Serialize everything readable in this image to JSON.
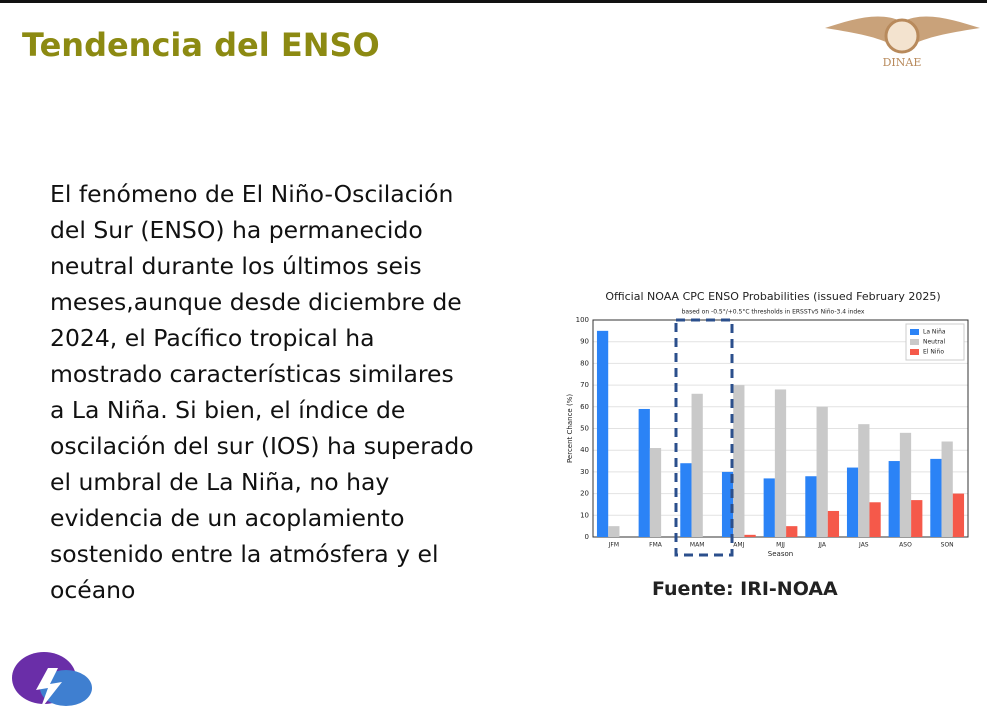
{
  "header": {
    "title": "Tendencia del ENSO",
    "logo_text": "DINAE"
  },
  "body": {
    "text": "El fenómeno de El Niño-Oscilación del Sur (ENSO) ha permanecido neutral durante los últimos seis meses,aunque desde diciembre de 2024, el Pacífico tropical ha mostrado características similares a La Niña. Si bien, el índice de oscilación del sur (IOS) ha superado el umbral de La Niña, no hay evidencia de un acoplamiento sostenido entre la atmósfera y el océano"
  },
  "caption": "Fuente: IRI-NOAA",
  "chart_data": {
    "type": "bar",
    "title": "Official NOAA CPC ENSO Probabilities (issued February 2025)",
    "subtitle": "based on -0.5°/+0.5°C thresholds in ERSSTv5 Niño-3.4 index",
    "x_label": "Season",
    "y_label": "Percent Chance (%)",
    "categories": [
      "JFM",
      "FMA",
      "MAM",
      "AMJ",
      "MJJ",
      "JJA",
      "JAS",
      "ASO",
      "SON"
    ],
    "series": [
      {
        "name": "La Niña",
        "color": "#2b83f6",
        "values": [
          95,
          59,
          34,
          30,
          27,
          28,
          32,
          35,
          36
        ]
      },
      {
        "name": "Neutral",
        "color": "#c9c9c9",
        "values": [
          5,
          41,
          66,
          70,
          68,
          60,
          52,
          48,
          44
        ]
      },
      {
        "name": "El Niño",
        "color": "#f5594a",
        "values": [
          0,
          0,
          0,
          1,
          5,
          12,
          16,
          17,
          20
        ]
      }
    ],
    "ylim": [
      0,
      100
    ],
    "yticks": [
      0,
      10,
      20,
      30,
      40,
      50,
      60,
      70,
      80,
      90,
      100
    ],
    "grid": true,
    "legend": "upper right"
  }
}
